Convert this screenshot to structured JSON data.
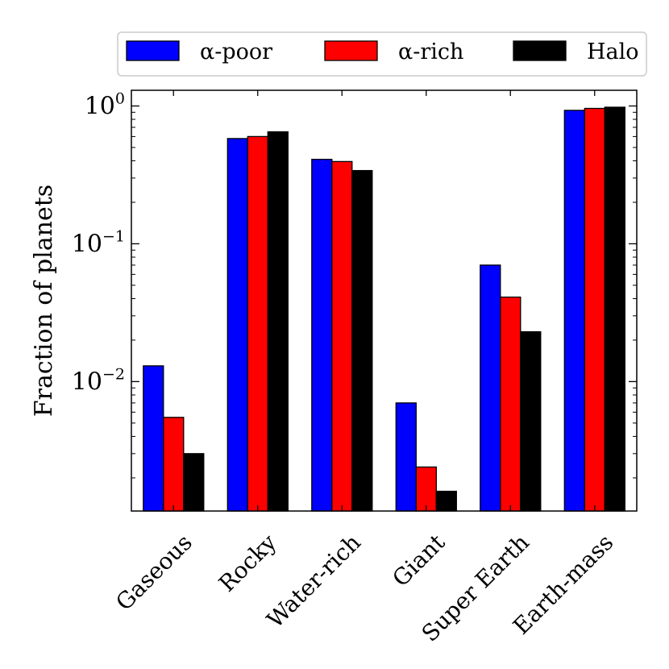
{
  "chart_data": {
    "type": "bar",
    "categories": [
      "Gaseous",
      "Rocky",
      "Water-rich",
      "Giant",
      "Super Earth",
      "Earth-mass"
    ],
    "series": [
      {
        "name": "α-poor",
        "color": "#0000ff",
        "values": [
          0.013,
          0.58,
          0.41,
          0.007,
          0.07,
          0.93
        ]
      },
      {
        "name": "α-rich",
        "color": "#ff0000",
        "values": [
          0.0055,
          0.6,
          0.395,
          0.0024,
          0.041,
          0.96
        ]
      },
      {
        "name": "Halo",
        "color": "#000000",
        "values": [
          0.003,
          0.65,
          0.34,
          0.0016,
          0.023,
          0.98
        ]
      }
    ],
    "ylabel": "Fraction of planets",
    "yscale": "log",
    "ylim": [
      0.00115,
      1.3
    ],
    "yticks": [
      {
        "value": 0.01,
        "base": "10",
        "exp": "−2"
      },
      {
        "value": 0.1,
        "base": "10",
        "exp": "−1"
      },
      {
        "value": 1,
        "base": "10",
        "exp": "0"
      }
    ],
    "legend_placement": "top-center, above plot",
    "grid": false
  }
}
